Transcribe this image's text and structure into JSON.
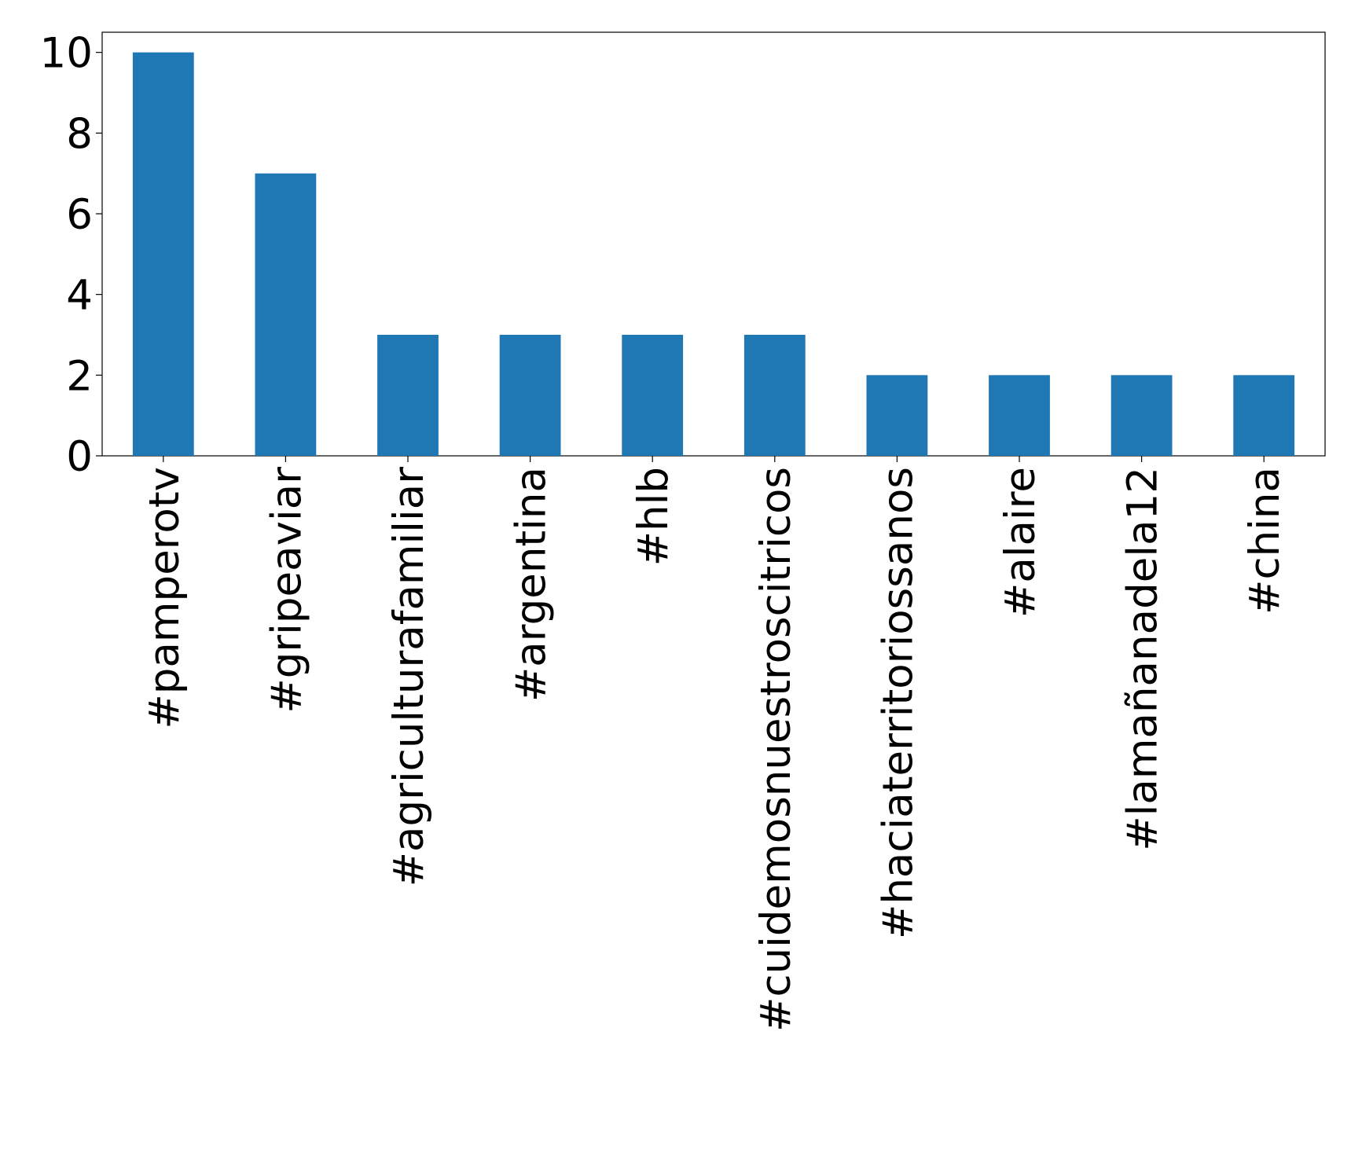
{
  "chart_data": {
    "type": "bar",
    "categories": [
      "#pamperotv",
      "#gripeaviar",
      "#agriculturafamiliar",
      "#argentina",
      "#hlb",
      "#cuidemosnuestroscitricos",
      "#haciaterritoriossanos",
      "#alaire",
      "#lamañanadela12",
      "#china"
    ],
    "values": [
      10,
      7,
      3,
      3,
      3,
      3,
      2,
      2,
      2,
      2
    ],
    "color": "#1f77b4",
    "ylim": [
      0,
      10.5
    ],
    "yticks": [
      0,
      2,
      4,
      6,
      8,
      10
    ],
    "grid": false
  }
}
